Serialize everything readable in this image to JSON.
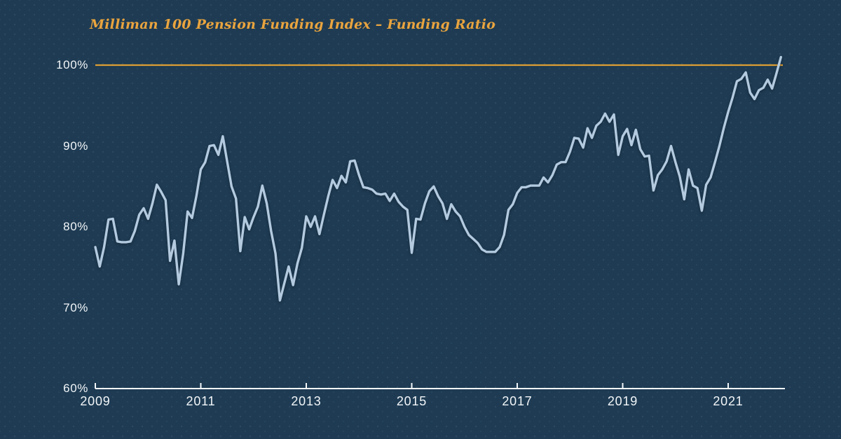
{
  "title": "Milliman 100 Pension Funding Index – Funding Ratio",
  "colors": {
    "background": "#1E3B53",
    "title_text": "#E9A43E",
    "reference_line": "#DD9E33",
    "series_line": "#B3CADF",
    "axis_and_labels": "#F2F6F9"
  },
  "chart_data": {
    "type": "line",
    "title": "Milliman 100 Pension Funding Index – Funding Ratio",
    "frequency": "monthly",
    "start": "2009-01",
    "end": "2022-01",
    "unit": "funded ratio, percent",
    "grid": "off",
    "legend": "none",
    "y_axis": {
      "min": 60,
      "max": 100,
      "tick_step": 10,
      "ticks": [
        60,
        70,
        80,
        90,
        100
      ],
      "tick_labels": [
        "60%",
        "70%",
        "80%",
        "90%",
        "100%"
      ]
    },
    "x_axis": {
      "tick_years": [
        2009,
        2011,
        2013,
        2015,
        2017,
        2019,
        2021
      ]
    },
    "reference_line": {
      "value": 100,
      "label": "100%"
    },
    "series": [
      {
        "name": "Funding ratio",
        "values_by_year": {
          "2009": [
            77.5,
            75.1,
            77.5,
            80.9,
            81.0,
            78.2,
            78.1,
            78.1,
            78.2,
            79.5,
            81.5,
            82.3
          ],
          "2010": [
            81.0,
            82.9,
            85.2,
            84.3,
            83.3,
            75.8,
            78.3,
            72.9,
            76.7,
            81.9,
            81.1,
            83.8
          ],
          "2011": [
            87.1,
            88.0,
            90.0,
            90.1,
            88.9,
            91.2,
            88.1,
            85.0,
            83.5,
            77.0,
            81.2,
            79.7
          ],
          "2012": [
            81.2,
            82.5,
            85.1,
            82.9,
            79.5,
            76.7,
            70.9,
            73.0,
            75.1,
            72.8,
            75.5,
            77.4
          ],
          "2013": [
            81.3,
            80.0,
            81.3,
            79.1,
            81.5,
            83.8,
            85.8,
            84.8,
            86.3,
            85.5,
            88.1,
            88.2
          ],
          "2014": [
            86.4,
            84.9,
            84.8,
            84.6,
            84.1,
            84.0,
            84.1,
            83.2,
            84.1,
            83.1,
            82.5,
            82.1
          ],
          "2015": [
            76.8,
            81.0,
            80.9,
            82.9,
            84.4,
            85.0,
            83.8,
            82.9,
            81.0,
            82.8,
            81.9,
            81.3
          ],
          "2016": [
            80.0,
            79.0,
            78.5,
            78.0,
            77.2,
            76.9,
            76.9,
            76.9,
            77.5,
            79.0,
            82.1,
            82.8
          ],
          "2017": [
            84.2,
            84.9,
            84.9,
            85.1,
            85.1,
            85.1,
            86.1,
            85.5,
            86.4,
            87.7,
            88.0,
            88.0
          ],
          "2018": [
            89.3,
            91.0,
            90.9,
            89.8,
            92.2,
            91.0,
            92.5,
            93.0,
            94.0,
            93.0,
            93.9,
            88.9
          ],
          "2019": [
            91.2,
            92.1,
            90.1,
            92.0,
            89.6,
            88.7,
            88.8,
            84.5,
            86.4,
            87.1,
            88.1,
            90.0
          ],
          "2020": [
            88.0,
            86.2,
            83.4,
            87.1,
            85.1,
            84.8,
            82.0,
            85.2,
            86.1,
            88.0,
            90.0,
            92.2
          ],
          "2021": [
            94.2,
            96.0,
            98.0,
            98.3,
            99.1,
            96.6,
            95.8,
            96.9,
            97.2,
            98.2,
            97.1,
            99.0
          ],
          "2022": [
            101.0
          ]
        }
      }
    ]
  }
}
